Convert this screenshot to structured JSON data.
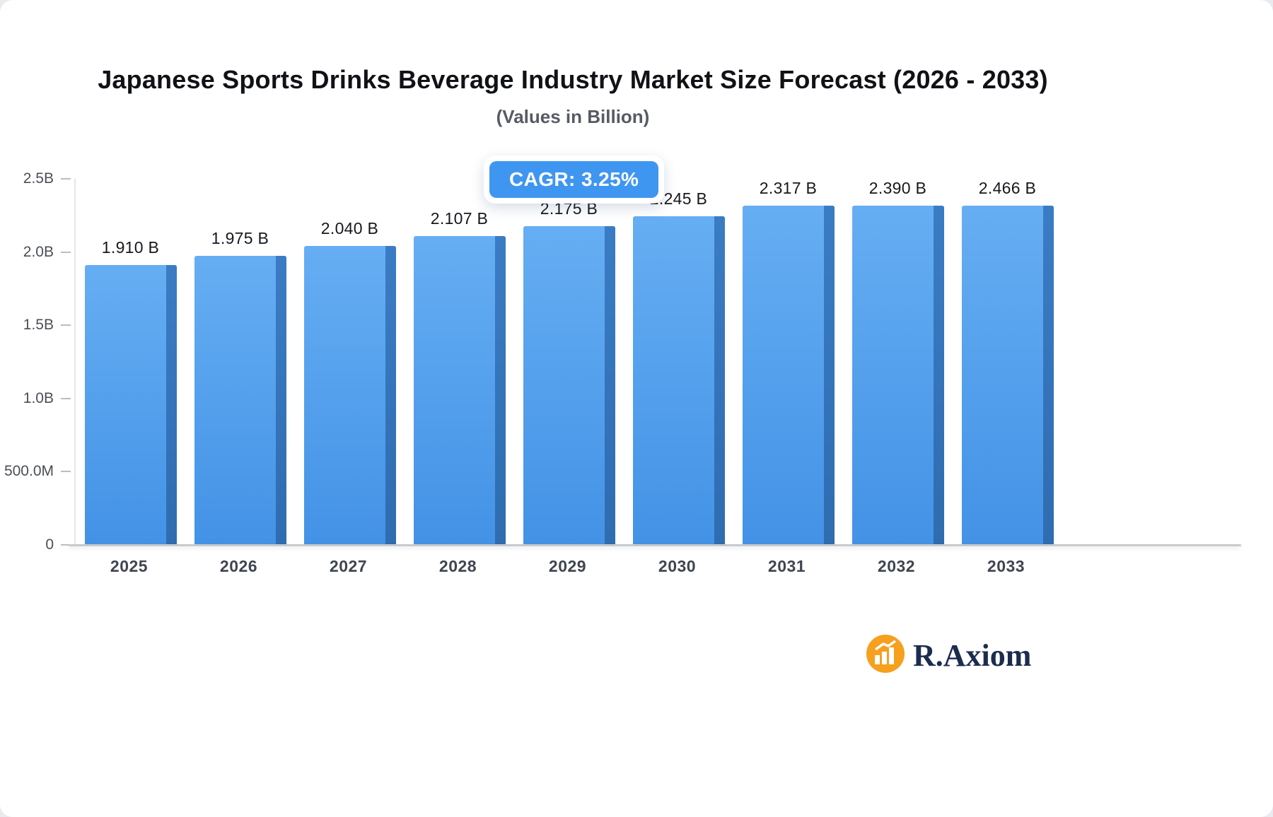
{
  "chart_data": {
    "type": "bar",
    "title": "Japanese Sports Drinks Beverage Industry Market Size Forecast (2026 - 2033)",
    "subtitle": "(Values in Billion)",
    "categories": [
      "2025",
      "2026",
      "2027",
      "2028",
      "2029",
      "2030",
      "2031",
      "2032",
      "2033"
    ],
    "values": [
      1.91,
      1.975,
      2.04,
      2.107,
      2.175,
      2.245,
      2.317,
      2.39,
      2.466
    ],
    "value_labels": [
      "1.910 B",
      "1.975 B",
      "2.040 B",
      "2.107 B",
      "2.175 B",
      "2.245 B",
      "2.317 B",
      "2.390 B",
      "2.466 B"
    ],
    "unit": "Billion",
    "ylim": [
      0,
      2.5
    ],
    "y_ticks": [
      {
        "value": 0,
        "label": "0"
      },
      {
        "value": 0.5,
        "label": "500.0M"
      },
      {
        "value": 1.0,
        "label": "1.0B"
      },
      {
        "value": 1.5,
        "label": "1.5B"
      },
      {
        "value": 2.0,
        "label": "2.0B"
      },
      {
        "value": 2.5,
        "label": "2.5B"
      }
    ],
    "grid": "off",
    "legend": "none",
    "bar_color_top": "#66aef3",
    "bar_color_bottom": "#4392e6",
    "bar_side_color": "#3a7cc4"
  },
  "badge": {
    "cagr_label": "CAGR: 3.25%",
    "color": "#3f96f1"
  },
  "logo": {
    "text": "R.Axiom",
    "icon": "bar-chart-icon",
    "icon_color": "#f6a01e",
    "text_color": "#1c2c4e"
  }
}
